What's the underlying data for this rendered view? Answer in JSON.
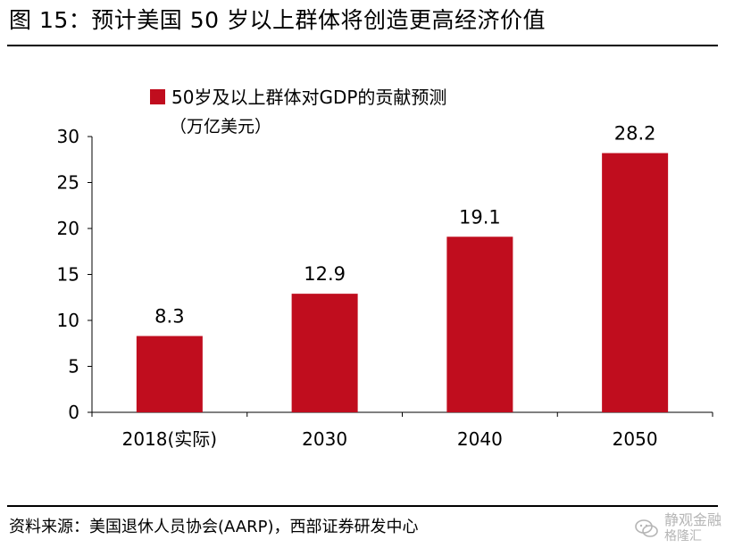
{
  "figure": {
    "title": "图 15：预计美国 50 岁以上群体将创造更高经济价值"
  },
  "chart_data": {
    "type": "bar",
    "categories": [
      "2018(实际)",
      "2030",
      "2040",
      "2050"
    ],
    "series": [
      {
        "name": "50岁及以上群体对GDP的贡献预测",
        "values": [
          8.3,
          12.9,
          19.1,
          28.2
        ]
      }
    ],
    "values": [
      8.3,
      12.9,
      19.1,
      28.2
    ],
    "legend_lines": [
      "50岁及以上群体对GDP的贡献预测",
      "（万亿美元）"
    ],
    "yticks": [
      0,
      5,
      10,
      15,
      20,
      25,
      30
    ],
    "ylim": [
      0,
      30
    ],
    "title": "",
    "xlabel": "",
    "ylabel": "",
    "grid": false,
    "legend_position": "top-left",
    "bar_color": "#c00d1e"
  },
  "footer": {
    "source": "资料来源：美国退休人员协会(AARP)，西部证券研发中心",
    "watermark_main": "静观金融",
    "watermark_sub": "格隆汇"
  }
}
